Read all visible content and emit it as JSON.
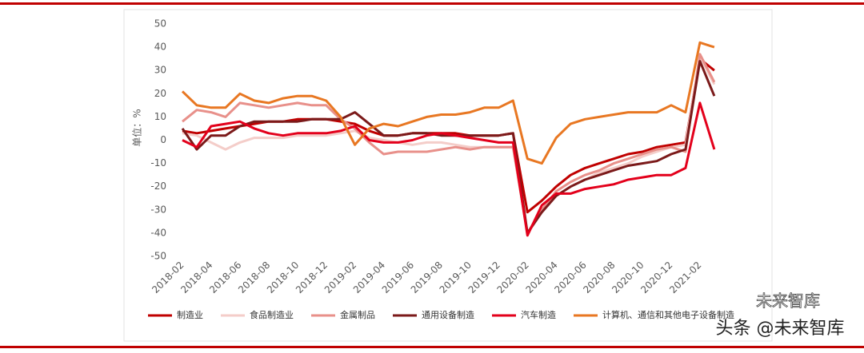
{
  "chart_data": {
    "type": "line",
    "y_label": "单位：%",
    "categories": [
      "2018-02",
      null,
      "2018-04",
      null,
      "2018-06",
      null,
      "2018-08",
      null,
      "2018-10",
      null,
      "2018-12",
      null,
      "2019-02",
      null,
      "2019-04",
      null,
      "2019-06",
      null,
      "2019-08",
      null,
      "2019-10",
      null,
      "2019-12",
      null,
      "2020-02",
      null,
      "2020-04",
      null,
      "2020-06",
      null,
      "2020-08",
      null,
      "2020-10",
      null,
      "2020-12",
      null,
      "2021-02",
      null
    ],
    "ylim": [
      -50,
      50
    ],
    "yticks": [
      -50,
      -40,
      -30,
      -20,
      -10,
      0,
      10,
      20,
      30,
      40,
      50
    ],
    "grid": false,
    "series": [
      {
        "name": "制造业",
        "color": "#c00000",
        "values": [
          4,
          3,
          4,
          5,
          6,
          7,
          8,
          8,
          9,
          9,
          9,
          8,
          7,
          4,
          2,
          2,
          3,
          3,
          3,
          3,
          2,
          2,
          2,
          3,
          -31,
          -26,
          -20,
          -15,
          -12,
          -10,
          -8,
          -6,
          -5,
          -3,
          -2,
          -1,
          35,
          30
        ]
      },
      {
        "name": "食品制造业",
        "color": "#f4cdc9",
        "values": [
          3,
          2,
          -1,
          -4,
          -1,
          1,
          1,
          1,
          2,
          2,
          2,
          3,
          4,
          1,
          0,
          -1,
          -2,
          -1,
          -1,
          -2,
          -3,
          -3,
          -3,
          -3,
          -40,
          -30,
          -24,
          -20,
          -17,
          -14,
          -12,
          -10,
          -7,
          -5,
          -3,
          -2,
          36,
          24
        ]
      },
      {
        "name": "金属制品",
        "color": "#e8908a",
        "values": [
          8,
          13,
          12,
          10,
          16,
          15,
          14,
          15,
          16,
          15,
          15,
          9,
          5,
          -1,
          -6,
          -5,
          -5,
          -5,
          -4,
          -3,
          -4,
          -3,
          -3,
          -3,
          -40,
          -30,
          -22,
          -18,
          -15,
          -13,
          -10,
          -8,
          -6,
          -4,
          -3,
          -5,
          37,
          25
        ]
      },
      {
        "name": "通用设备制造",
        "color": "#7b1a1a",
        "values": [
          5,
          -4,
          2,
          2,
          6,
          8,
          8,
          8,
          8,
          9,
          9,
          9,
          12,
          7,
          2,
          2,
          3,
          3,
          2,
          2,
          2,
          2,
          2,
          3,
          -40,
          -31,
          -24,
          -20,
          -17,
          -15,
          -13,
          -11,
          -10,
          -9,
          -6,
          -4,
          34,
          19
        ]
      },
      {
        "name": "汽车制造",
        "color": "#e3001b",
        "values": [
          0,
          -3,
          6,
          7,
          8,
          5,
          3,
          2,
          3,
          3,
          3,
          4,
          6,
          0,
          -1,
          -1,
          0,
          2,
          3,
          2,
          1,
          0,
          -1,
          -1,
          -41,
          -28,
          -23,
          -23,
          -21,
          -20,
          -19,
          -17,
          -16,
          -15,
          -15,
          -12,
          16,
          -4
        ]
      },
      {
        "name": "计算机、通信和其他电子设备制造",
        "color": "#e87722",
        "values": [
          21,
          15,
          14,
          14,
          20,
          17,
          16,
          18,
          19,
          19,
          17,
          10,
          -2,
          5,
          7,
          6,
          8,
          10,
          11,
          11,
          12,
          14,
          14,
          17,
          -8,
          -10,
          1,
          7,
          9,
          10,
          11,
          12,
          12,
          12,
          15,
          12,
          42,
          40
        ]
      }
    ]
  },
  "watermark": {
    "brand": "未来智库",
    "credit": "头条 @未来智库"
  }
}
